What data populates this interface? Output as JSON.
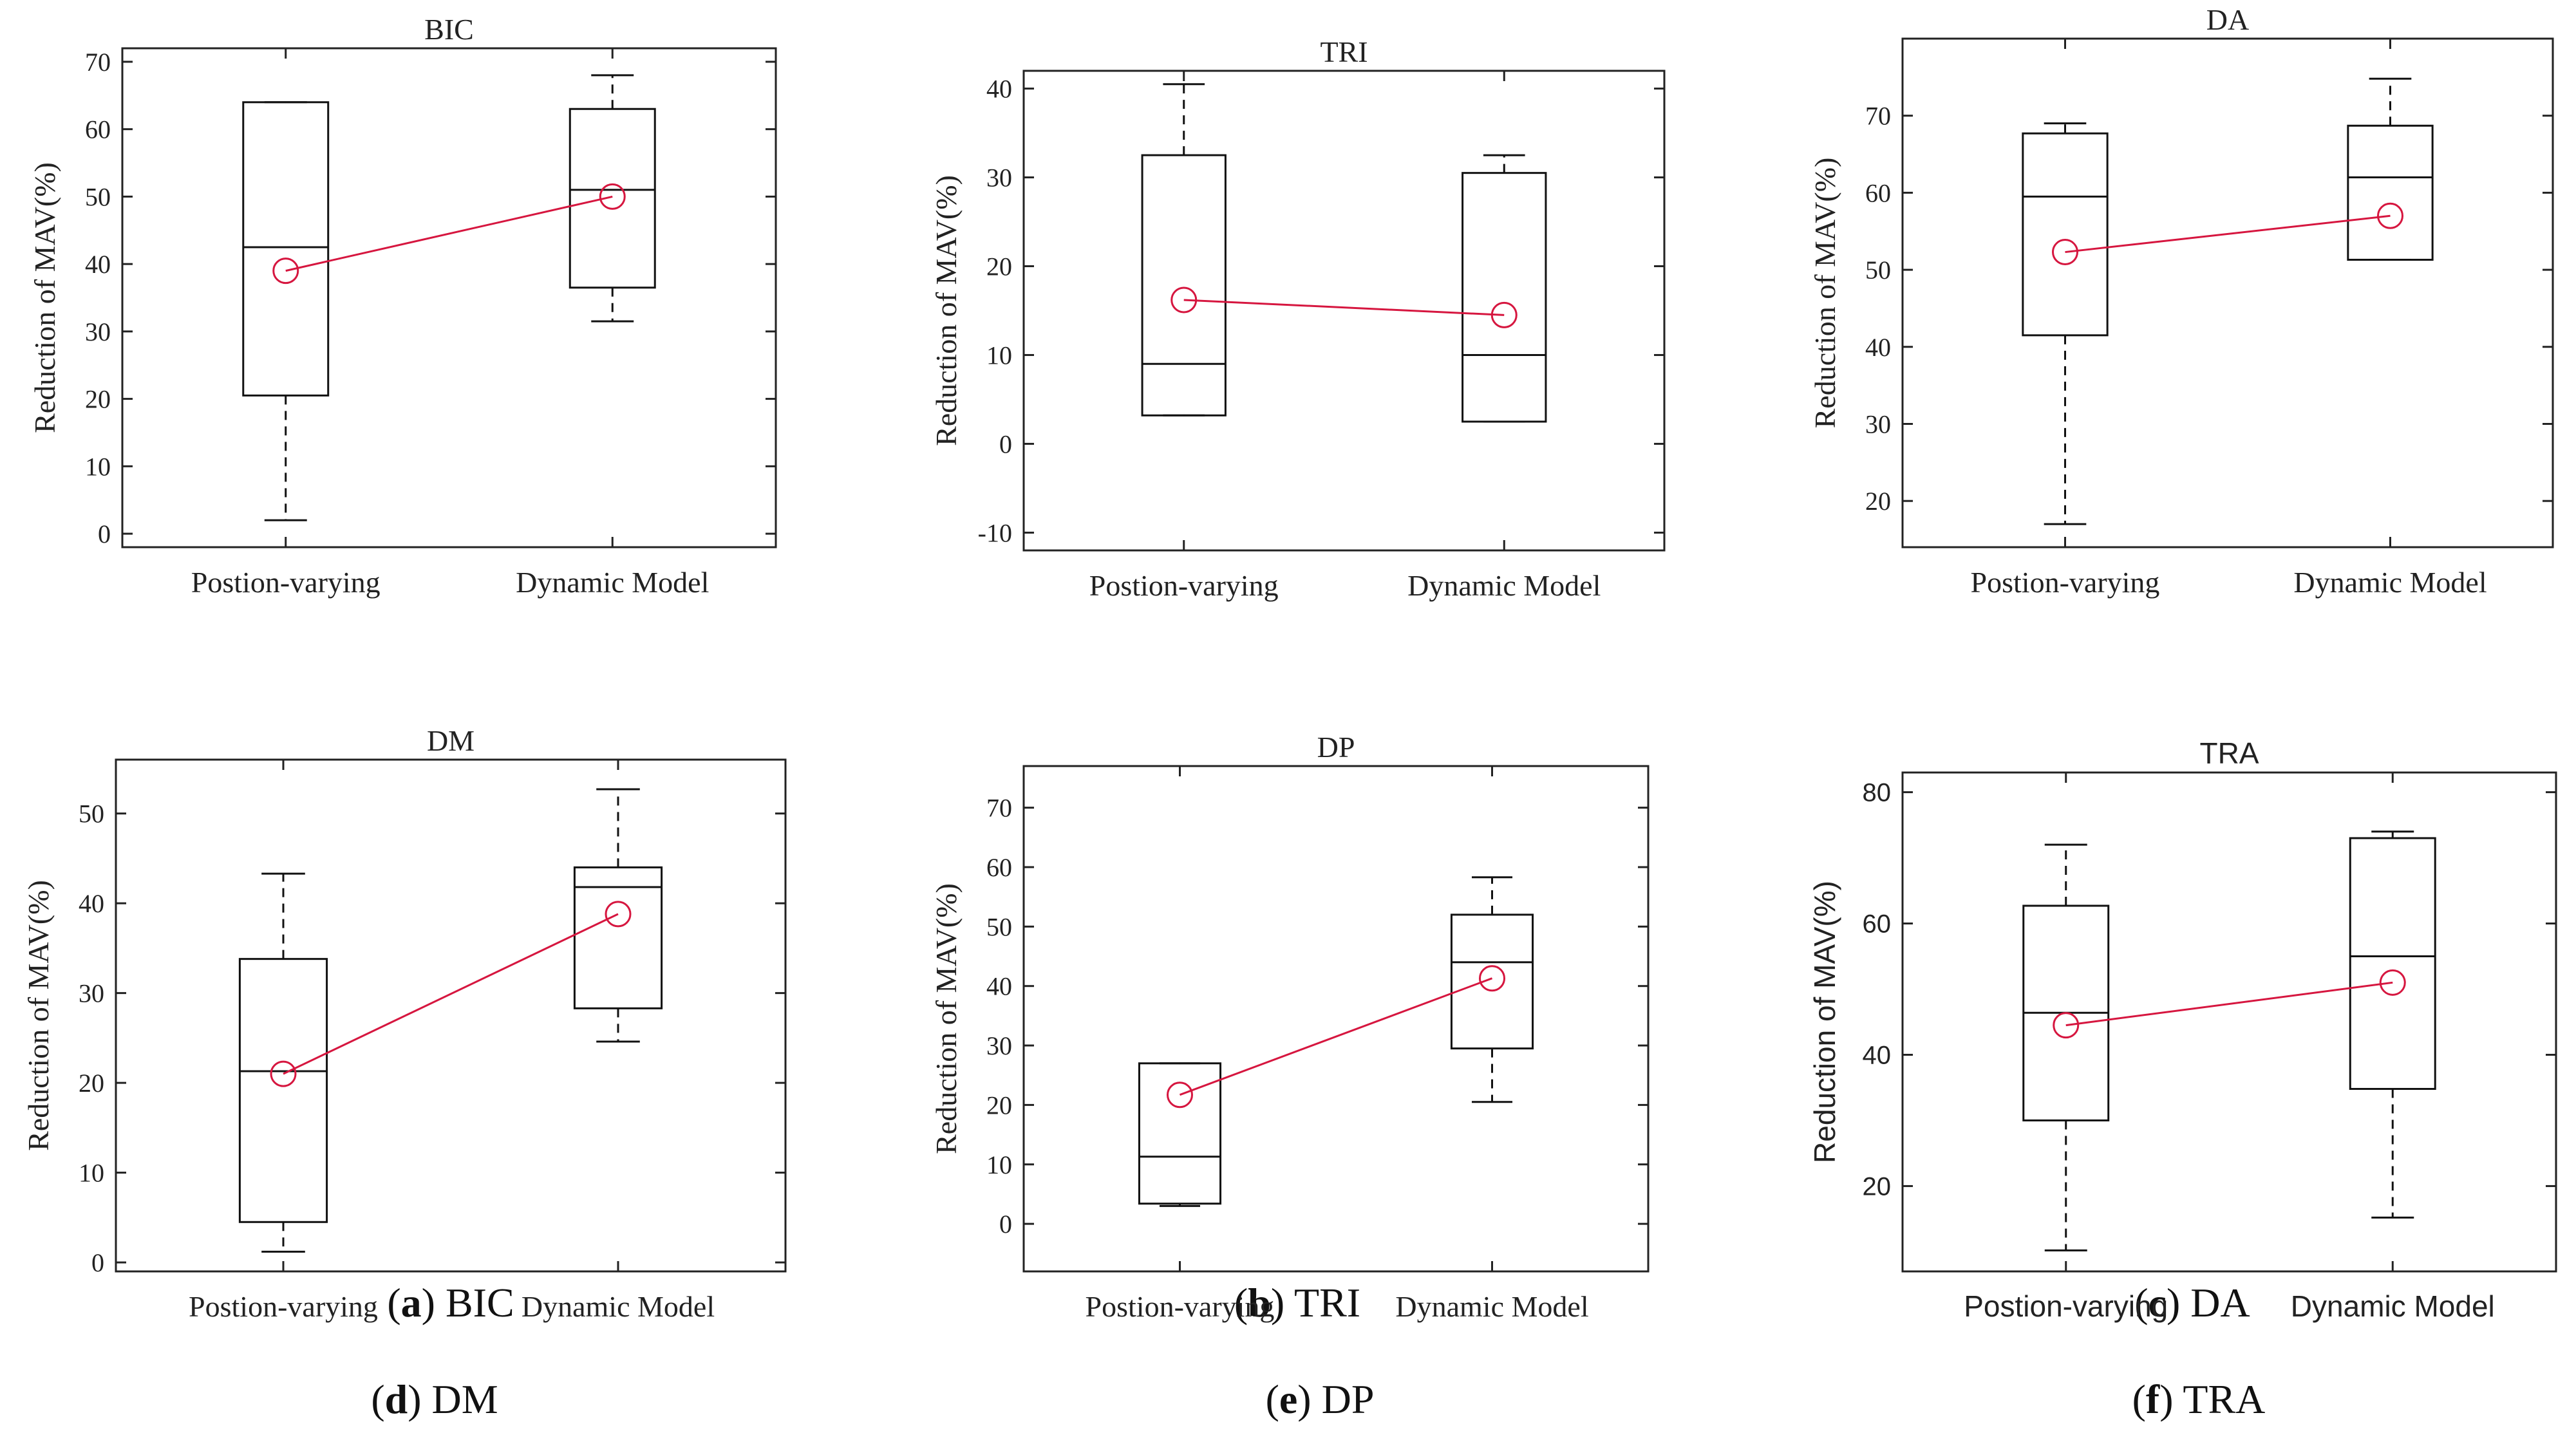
{
  "figure": {
    "captions": [
      {
        "letter": "a",
        "name": "BIC"
      },
      {
        "letter": "b",
        "name": "TRI"
      },
      {
        "letter": "c",
        "name": "DA"
      },
      {
        "letter": "d",
        "name": "DM"
      },
      {
        "letter": "e",
        "name": "DP"
      },
      {
        "letter": "f",
        "name": "TRA"
      }
    ],
    "colors": {
      "box": "#111111",
      "mean": "#d6163f",
      "frame": "#222222"
    }
  },
  "chart_data": [
    {
      "type": "box",
      "title": "BIC",
      "font": "serif",
      "ylabel": "Reduction of MAV(%)",
      "categories": [
        "Postion-varying",
        "Dynamic Model"
      ],
      "ylim": [
        -2,
        72
      ],
      "yticks": [
        0,
        10,
        20,
        30,
        40,
        50,
        60,
        70
      ],
      "boxes": [
        {
          "min": 2,
          "q1": 20.5,
          "median": 42.5,
          "q3": 64,
          "max": 64
        },
        {
          "min": 31.5,
          "q1": 36.5,
          "median": 51,
          "q3": 63,
          "max": 68
        }
      ],
      "means": [
        39,
        50
      ]
    },
    {
      "type": "box",
      "title": "TRI",
      "font": "serif",
      "ylabel": "Reduction of MAV(%)",
      "categories": [
        "Postion-varying",
        "Dynamic Model"
      ],
      "ylim": [
        -12,
        42
      ],
      "yticks": [
        -10,
        0,
        10,
        20,
        30,
        40
      ],
      "boxes": [
        {
          "min": 3.2,
          "q1": 3.2,
          "median": 9,
          "q3": 32.5,
          "max": 40.5
        },
        {
          "min": 2.5,
          "q1": 2.5,
          "median": 10,
          "q3": 30.5,
          "max": 32.5
        }
      ],
      "means": [
        16.2,
        14.5
      ]
    },
    {
      "type": "box",
      "title": "DA",
      "font": "serif",
      "ylabel": "Reduction of MAV(%)",
      "categories": [
        "Postion-varying",
        "Dynamic Model"
      ],
      "ylim": [
        14,
        80
      ],
      "yticks": [
        20,
        30,
        40,
        50,
        60,
        70
      ],
      "boxes": [
        {
          "min": 17,
          "q1": 41.5,
          "median": 59.5,
          "q3": 67.7,
          "max": 69
        },
        {
          "min": 51.3,
          "q1": 51.3,
          "median": 62,
          "q3": 68.7,
          "max": 74.8
        }
      ],
      "means": [
        52.3,
        57
      ]
    },
    {
      "type": "box",
      "title": "DM",
      "font": "serif",
      "ylabel": "Reduction of MAV(%)",
      "categories": [
        "Postion-varying",
        "Dynamic Model"
      ],
      "ylim": [
        -1,
        56
      ],
      "yticks": [
        0,
        10,
        20,
        30,
        40,
        50
      ],
      "boxes": [
        {
          "min": 1.2,
          "q1": 4.5,
          "median": 21.3,
          "q3": 33.8,
          "max": 43.3
        },
        {
          "min": 24.6,
          "q1": 28.3,
          "median": 41.8,
          "q3": 44,
          "max": 52.7
        }
      ],
      "means": [
        21,
        38.8
      ]
    },
    {
      "type": "box",
      "title": "DP",
      "font": "serif",
      "ylabel": "Reduction of MAV(%)",
      "categories": [
        "Postion-varying",
        "Dynamic Model"
      ],
      "ylim": [
        -8,
        77
      ],
      "yticks": [
        0,
        10,
        20,
        30,
        40,
        50,
        60,
        70
      ],
      "boxes": [
        {
          "min": 3,
          "q1": 3.4,
          "median": 11.3,
          "q3": 27,
          "max": 27
        },
        {
          "min": 20.5,
          "q1": 29.5,
          "median": 44,
          "q3": 52,
          "max": 58.3
        }
      ],
      "means": [
        21.7,
        41.3
      ]
    },
    {
      "type": "box",
      "title": "TRA",
      "font": "sans",
      "ylabel": "Reduction of MAV(%)",
      "categories": [
        "Postion-varying",
        "Dynamic Model"
      ],
      "ylim": [
        7,
        83
      ],
      "yticks": [
        20,
        40,
        60,
        80
      ],
      "boxes": [
        {
          "min": 10.2,
          "q1": 30,
          "median": 46.4,
          "q3": 62.7,
          "max": 72
        },
        {
          "min": 15.2,
          "q1": 34.8,
          "median": 55,
          "q3": 73,
          "max": 74
        }
      ],
      "means": [
        44.5,
        51
      ]
    }
  ]
}
